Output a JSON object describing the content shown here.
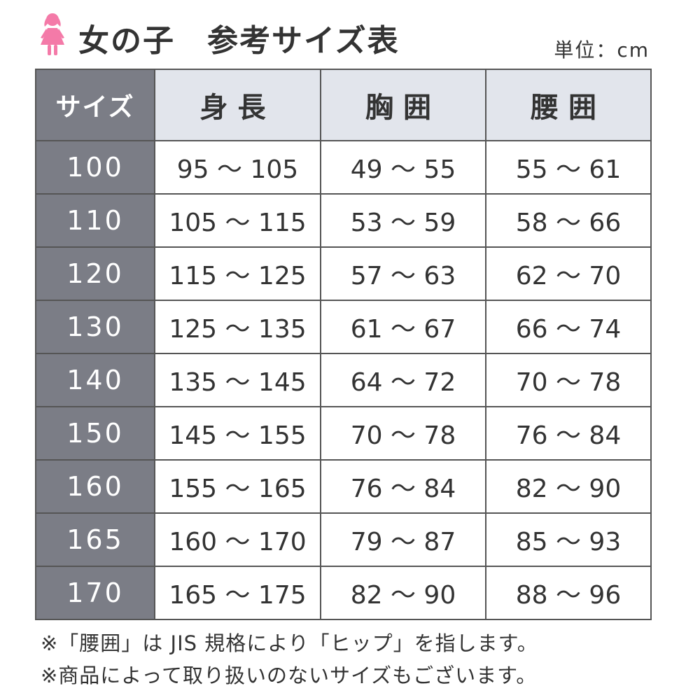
{
  "header": {
    "icon": "girl-icon",
    "icon_color": "#f47aa8",
    "title": "女の子　参考サイズ表",
    "unit": "単位：cm"
  },
  "table": {
    "columns": [
      "サイズ",
      "身長",
      "胸囲",
      "腰囲"
    ],
    "header_bg": "#e2e5ec",
    "size_bg": "#7b7d86",
    "rows": [
      [
        "100",
        "95 ～ 105",
        "49 ～ 55",
        "55 ～ 61"
      ],
      [
        "110",
        "105 ～ 115",
        "53 ～ 59",
        "58 ～ 66"
      ],
      [
        "120",
        "115 ～ 125",
        "57 ～ 63",
        "62 ～ 70"
      ],
      [
        "130",
        "125 ～ 135",
        "61 ～ 67",
        "66 ～ 74"
      ],
      [
        "140",
        "135 ～ 145",
        "64 ～ 72",
        "70 ～ 78"
      ],
      [
        "150",
        "145 ～ 155",
        "70 ～ 78",
        "76 ～ 84"
      ],
      [
        "160",
        "155 ～ 165",
        "76 ～ 84",
        "82 ～ 90"
      ],
      [
        "165",
        "160 ～ 170",
        "79 ～ 87",
        "85 ～ 93"
      ],
      [
        "170",
        "165 ～ 175",
        "82 ～ 90",
        "88 ～ 96"
      ]
    ]
  },
  "notes": [
    "※「腰囲」は JIS 規格により「ヒップ」を指します。",
    "※商品によって取り扱いのないサイズもございます。"
  ]
}
